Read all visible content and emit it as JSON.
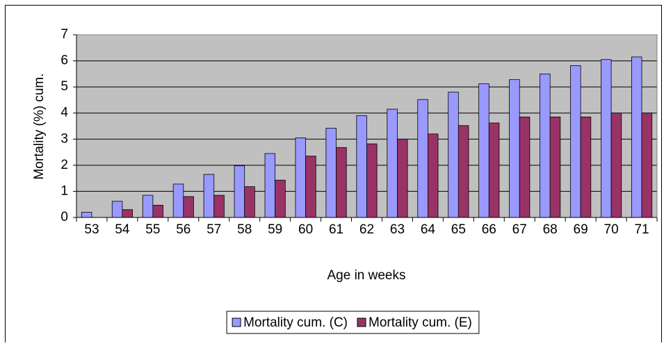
{
  "chart_data": {
    "type": "bar",
    "categories": [
      "53",
      "54",
      "55",
      "56",
      "57",
      "58",
      "59",
      "60",
      "61",
      "62",
      "63",
      "64",
      "65",
      "66",
      "67",
      "68",
      "69",
      "70",
      "71"
    ],
    "series": [
      {
        "name": "Mortality cum. (C)",
        "color": "#9999ff",
        "values": [
          0.2,
          0.62,
          0.85,
          1.28,
          1.65,
          1.98,
          2.45,
          3.05,
          3.42,
          3.9,
          4.15,
          4.52,
          4.8,
          5.12,
          5.28,
          5.5,
          5.82,
          6.05,
          6.15
        ]
      },
      {
        "name": "Mortality cum. (E)",
        "color": "#993366",
        "values": [
          0,
          0.3,
          0.47,
          0.8,
          0.85,
          1.18,
          1.43,
          2.35,
          2.68,
          2.82,
          3.0,
          3.2,
          3.52,
          3.62,
          3.85,
          3.85,
          3.85,
          4.0,
          4.0
        ]
      }
    ],
    "x_label": "Age in weeks",
    "y_label": "Mortality (%) cum.",
    "ylim": [
      0,
      7
    ],
    "yticks": [
      0,
      1,
      2,
      3,
      4,
      5,
      6,
      7
    ],
    "grid": true,
    "legend": "bottom",
    "plot_background": "#c0c0c0"
  }
}
